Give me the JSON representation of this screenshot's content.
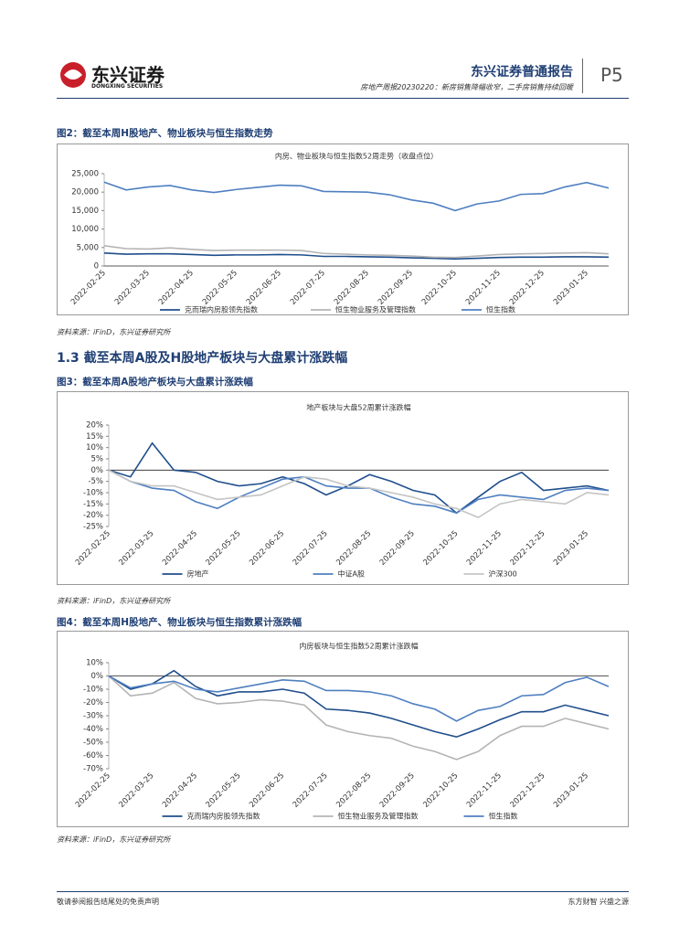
{
  "header": {
    "brand": "东兴证券",
    "brand_en": "DONGXING SECURITIES",
    "report_type": "东兴证券普通报告",
    "subtitle": "房地产周报20230220：新房销售降幅收窄，二手房销售持续回暖",
    "page": "P5"
  },
  "figures": [
    {
      "caption": "图2：截至本周H股地产、物业板块与恒生指数走势",
      "source": "资料来源：iFinD，东兴证券研究所"
    },
    {
      "caption": "图3：截至本周A股地产板块与大盘累计涨跌幅",
      "source": "资料来源：iFinD，东兴证券研究所"
    },
    {
      "caption": "图4：截至本周H股地产、物业板块与恒生指数累计涨跌幅",
      "source": "资料来源：iFinD，东兴证券研究所"
    }
  ],
  "section_heading": "1.3 截至本周A股及H股地产板块与大盘累计涨跌幅",
  "footer": {
    "left": "敬请参阅报告结尾处的免责声明",
    "right": "东方财智 兴盛之源"
  },
  "chart_data": [
    {
      "type": "line",
      "title": "内房、物业板块与恒生指数52周走势（收盘点位）",
      "categories": [
        "2022-02-25",
        null,
        "2022-03-25",
        null,
        "2022-04-25",
        null,
        "2022-05-25",
        null,
        "2022-06-25",
        null,
        "2022-07-25",
        null,
        "2022-08-25",
        null,
        "2022-09-25",
        null,
        "2022-10-25",
        null,
        "2022-11-25",
        null,
        "2022-12-25",
        null,
        "2023-01-25",
        null
      ],
      "series": [
        {
          "name": "克而瑞内房股领先指数",
          "color": "#1f4e8c",
          "values": [
            3500,
            3200,
            3300,
            3300,
            3100,
            2900,
            3000,
            3000,
            3100,
            3000,
            2600,
            2600,
            2500,
            2400,
            2200,
            2100,
            1900,
            2100,
            2300,
            2400,
            2400,
            2500,
            2500,
            2400
          ]
        },
        {
          "name": "恒生物业服务及管理指数",
          "color": "#b4b4b4",
          "values": [
            5500,
            4700,
            4600,
            4900,
            4500,
            4200,
            4300,
            4300,
            4300,
            4200,
            3400,
            3200,
            3000,
            2900,
            2700,
            2400,
            2300,
            2700,
            3100,
            3300,
            3400,
            3500,
            3600,
            3300
          ]
        },
        {
          "name": "恒生指数",
          "color": "#4f7fc0",
          "values": [
            22700,
            20600,
            21400,
            21800,
            20600,
            19900,
            20700,
            21300,
            21900,
            21700,
            20200,
            20100,
            20000,
            19300,
            17900,
            17000,
            15000,
            16800,
            17600,
            19400,
            19600,
            21400,
            22600,
            21100
          ]
        }
      ],
      "ylim": [
        0,
        25000
      ],
      "yticks": [
        0,
        {
          "value": 5000,
          "label": "5,000"
        },
        {
          "value": 10000,
          "label": "10,000"
        },
        {
          "value": 15000,
          "label": "15,000"
        },
        {
          "value": 20000,
          "label": "20,000"
        },
        {
          "value": 25000,
          "label": "25,000"
        }
      ],
      "grid": false,
      "legend": "bottom"
    },
    {
      "type": "line",
      "title": "地产板块与大盘52周累计涨跌幅",
      "categories": [
        "2022-02-25",
        null,
        "2022-03-25",
        null,
        "2022-04-25",
        null,
        "2022-05-25",
        null,
        "2022-06-25",
        null,
        "2022-07-25",
        null,
        "2022-08-25",
        null,
        "2022-09-25",
        null,
        "2022-10-25",
        null,
        "2022-11-25",
        null,
        "2022-12-25",
        null,
        "2023-01-25",
        null
      ],
      "series": [
        {
          "name": "房地产",
          "color": "#1f4e8c",
          "values": [
            0,
            -3,
            12,
            0,
            -1,
            -5,
            -7,
            -6,
            -3,
            -6,
            -11,
            -7,
            -2,
            -5,
            -9,
            -11,
            -19,
            -12,
            -5,
            -1,
            -9,
            -8,
            -7,
            -9
          ]
        },
        {
          "name": "中证A股",
          "color": "#4f7fc0",
          "values": [
            0,
            -5,
            -8,
            -9,
            -14,
            -17,
            -12,
            -8,
            -4,
            -3,
            -7,
            -8,
            -8,
            -12,
            -15,
            -16,
            -19,
            -13,
            -11,
            -12,
            -13,
            -9,
            -8,
            -9
          ]
        },
        {
          "name": "沪深300",
          "color": "#c4c4c4",
          "values": [
            0,
            -5,
            -7,
            -7,
            -10,
            -13,
            -12,
            -11,
            -7,
            -3,
            -4,
            -7,
            -8,
            -10,
            -12,
            -15,
            -17,
            -21,
            -15,
            -13,
            -14,
            -15,
            -10,
            -11
          ]
        }
      ],
      "ylim": [
        -25,
        20
      ],
      "yticks": [
        {
          "value": -25,
          "label": "-25%"
        },
        {
          "value": -20,
          "label": "-20%"
        },
        {
          "value": -15,
          "label": "-15%"
        },
        {
          "value": -10,
          "label": "-10%"
        },
        {
          "value": -5,
          "label": "-5%"
        },
        {
          "value": 0,
          "label": "0%"
        },
        {
          "value": 5,
          "label": "5%"
        },
        {
          "value": 10,
          "label": "10%"
        },
        {
          "value": 15,
          "label": "15%"
        },
        {
          "value": 20,
          "label": "20%"
        }
      ],
      "grid": false,
      "legend": "bottom"
    },
    {
      "type": "line",
      "title": "内房板块与恒生指数52周累计涨跌幅",
      "categories": [
        "2022-02-25",
        null,
        "2022-03-25",
        null,
        "2022-04-25",
        null,
        "2022-05-25",
        null,
        "2022-06-25",
        null,
        "2022-07-25",
        null,
        "2022-08-25",
        null,
        "2022-09-25",
        null,
        "2022-10-25",
        null,
        "2022-11-25",
        null,
        "2022-12-25",
        null,
        "2023-01-25",
        null
      ],
      "series": [
        {
          "name": "克而瑞内房股领先指数",
          "color": "#1f4e8c",
          "values": [
            0,
            -10,
            -6,
            4,
            -8,
            -15,
            -12,
            -12,
            -10,
            -13,
            -25,
            -26,
            -28,
            -32,
            -37,
            -42,
            -46,
            -40,
            -33,
            -27,
            -27,
            -22,
            -26,
            -30
          ]
        },
        {
          "name": "恒生物业服务及管理指数",
          "color": "#b4b4b4",
          "values": [
            0,
            -15,
            -13,
            -5,
            -17,
            -21,
            -20,
            -18,
            -19,
            -22,
            -37,
            -42,
            -45,
            -47,
            -53,
            -57,
            -63,
            -57,
            -45,
            -38,
            -38,
            -32,
            -36,
            -40
          ]
        },
        {
          "name": "恒生指数",
          "color": "#4f7fc0",
          "values": [
            0,
            -9,
            -6,
            -4,
            -10,
            -12,
            -9,
            -6,
            -3,
            -4,
            -11,
            -11,
            -12,
            -15,
            -21,
            -25,
            -34,
            -26,
            -23,
            -15,
            -14,
            -5,
            -1,
            -8
          ]
        }
      ],
      "ylim": [
        -70,
        10
      ],
      "yticks": [
        {
          "value": -70,
          "label": "-70%"
        },
        {
          "value": -60,
          "label": "-60%"
        },
        {
          "value": -50,
          "label": "-50%"
        },
        {
          "value": -40,
          "label": "-40%"
        },
        {
          "value": -30,
          "label": "-30%"
        },
        {
          "value": -20,
          "label": "-20%"
        },
        {
          "value": -10,
          "label": "-10%"
        },
        {
          "value": 0,
          "label": "0%"
        },
        {
          "value": 10,
          "label": "10%"
        }
      ],
      "grid": false,
      "legend": "bottom"
    }
  ]
}
